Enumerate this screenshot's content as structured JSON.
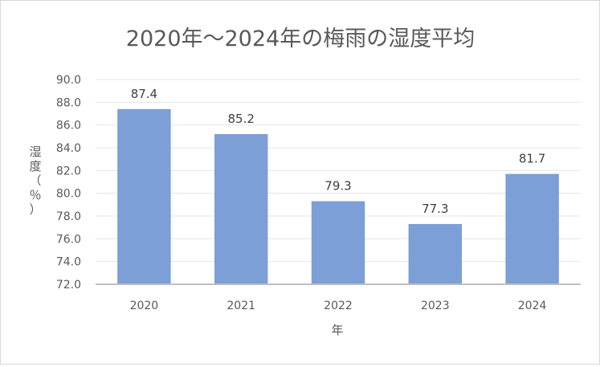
{
  "chart_data": {
    "type": "bar",
    "title": "2020年～2024年の梅雨の湿度平均",
    "xlabel": "年",
    "ylabel_chars": [
      "湿",
      "度",
      "（",
      "％",
      "）"
    ],
    "categories": [
      "2020",
      "2021",
      "2022",
      "2023",
      "2024"
    ],
    "values": [
      87.4,
      85.2,
      79.3,
      77.3,
      81.7
    ],
    "data_labels": [
      "87.4",
      "85.2",
      "79.3",
      "77.3",
      "81.7"
    ],
    "ylim": [
      72.0,
      90.0
    ],
    "yticks": [
      "72.0",
      "74.0",
      "76.0",
      "78.0",
      "80.0",
      "82.0",
      "84.0",
      "86.0",
      "88.0",
      "90.0"
    ],
    "grid": true,
    "legend": "none",
    "colors": {
      "bar": "#7b9fd6",
      "grid": "#e6e6e6",
      "axis": "#bfbfbf",
      "text": "#595959"
    }
  }
}
